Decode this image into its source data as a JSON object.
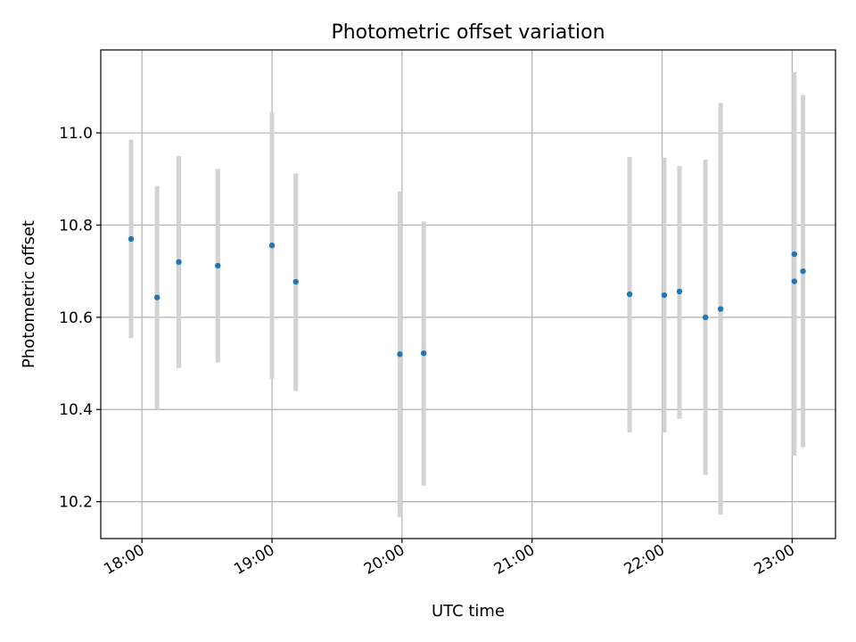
{
  "chart_data": {
    "type": "scatter",
    "title": "Photometric offset variation",
    "xlabel": "UTC time",
    "ylabel": "Photometric offset",
    "grid": true,
    "xlim": [
      "17:41",
      "23:20"
    ],
    "ylim": [
      10.12,
      11.18
    ],
    "x_ticks": [
      "18:00",
      "19:00",
      "20:00",
      "21:00",
      "22:00",
      "23:00"
    ],
    "y_ticks": [
      "10.2",
      "10.4",
      "10.6",
      "10.8",
      "11.0"
    ],
    "marker_color": "#1f77b4",
    "errorbar_color": "#d3d3d3",
    "points": [
      {
        "x": "17:55",
        "y": 10.77,
        "err_low": 10.555,
        "err_high": 10.985
      },
      {
        "x": "18:07",
        "y": 10.643,
        "err_low": 10.4,
        "err_high": 10.885
      },
      {
        "x": "18:17",
        "y": 10.72,
        "err_low": 10.49,
        "err_high": 10.95
      },
      {
        "x": "18:35",
        "y": 10.712,
        "err_low": 10.502,
        "err_high": 10.922
      },
      {
        "x": "19:00",
        "y": 10.756,
        "err_low": 10.467,
        "err_high": 11.045
      },
      {
        "x": "19:11",
        "y": 10.677,
        "err_low": 10.44,
        "err_high": 10.912
      },
      {
        "x": "19:59",
        "y": 10.52,
        "err_low": 10.167,
        "err_high": 10.873
      },
      {
        "x": "20:10",
        "y": 10.522,
        "err_low": 10.235,
        "err_high": 10.808
      },
      {
        "x": "21:45",
        "y": 10.65,
        "err_low": 10.35,
        "err_high": 10.948
      },
      {
        "x": "22:01",
        "y": 10.648,
        "err_low": 10.35,
        "err_high": 10.946
      },
      {
        "x": "22:08",
        "y": 10.656,
        "err_low": 10.38,
        "err_high": 10.928
      },
      {
        "x": "22:20",
        "y": 10.6,
        "err_low": 10.258,
        "err_high": 10.942
      },
      {
        "x": "22:27",
        "y": 10.618,
        "err_low": 10.172,
        "err_high": 11.065
      },
      {
        "x": "23:01",
        "y": 10.678,
        "err_low": 10.3,
        "err_high": 11.056
      },
      {
        "x": "23:01",
        "y": 10.737,
        "err_low": 10.34,
        "err_high": 11.132
      },
      {
        "x": "23:05",
        "y": 10.7,
        "err_low": 10.318,
        "err_high": 11.082
      }
    ]
  }
}
